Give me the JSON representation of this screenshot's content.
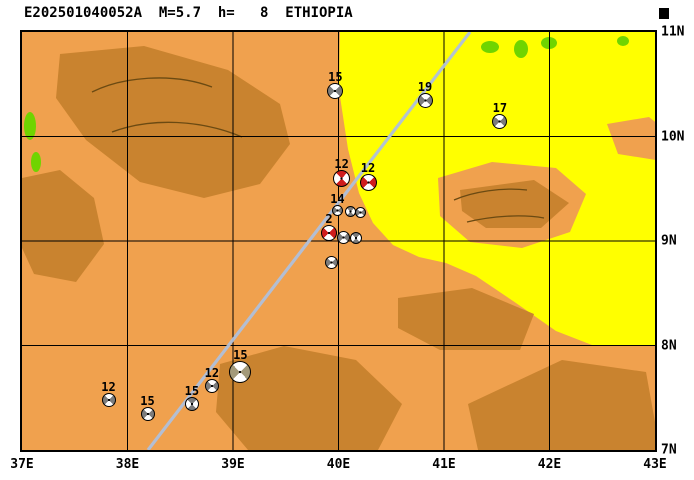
{
  "title": "E202501040052A  M=5.7  h=   8  ETHIOPIA",
  "map": {
    "x_ticks": [
      "37E",
      "38E",
      "39E",
      "40E",
      "41E",
      "42E",
      "43E"
    ],
    "y_ticks": [
      "11N",
      "10N",
      "9N",
      "8N",
      "7N"
    ],
    "lon_range": [
      37,
      43
    ],
    "lat_range": [
      7,
      11
    ]
  },
  "colors": {
    "base": "#f0a14e",
    "dark": "#c9832f",
    "lowland": "#ffff00",
    "green": "#6fd400",
    "line": "#afc0da",
    "gray_quad": "#7c7c7c",
    "red_quad": "#cf1d1d",
    "big_quad": "#a39a7a"
  },
  "events": [
    {
      "depth_label": "15",
      "lon": 39.97,
      "lat": 10.44,
      "kind": "gray",
      "size": 16,
      "rot": 45
    },
    {
      "depth_label": "19",
      "lon": 40.82,
      "lat": 10.34,
      "kind": "gray",
      "size": 15,
      "rot": 45
    },
    {
      "depth_label": "17",
      "lon": 41.53,
      "lat": 10.14,
      "kind": "gray",
      "size": 15,
      "rot": 45
    },
    {
      "depth_label": "12",
      "lon": 40.03,
      "lat": 9.6,
      "kind": "red",
      "size": 17,
      "rot": -45
    },
    {
      "depth_label": "12",
      "lon": 40.28,
      "lat": 9.56,
      "kind": "red",
      "size": 17,
      "rot": 45
    },
    {
      "depth_label": "14",
      "lon": 39.99,
      "lat": 9.29,
      "kind": "gray",
      "size": 11,
      "rot": 45
    },
    {
      "depth_label": "",
      "lon": 40.11,
      "lat": 9.28,
      "kind": "gray",
      "size": 11,
      "rot": -45
    },
    {
      "depth_label": "",
      "lon": 40.21,
      "lat": 9.27,
      "kind": "gray",
      "size": 11,
      "rot": 45
    },
    {
      "depth_label": "2",
      "lon": 39.91,
      "lat": 9.08,
      "kind": "red",
      "size": 16,
      "rot": 45
    },
    {
      "depth_label": "",
      "lon": 40.05,
      "lat": 9.03,
      "kind": "gray",
      "size": 13,
      "rot": 45
    },
    {
      "depth_label": "",
      "lon": 40.17,
      "lat": 9.03,
      "kind": "gray",
      "size": 12,
      "rot": -45
    },
    {
      "depth_label": "",
      "lon": 39.93,
      "lat": 8.79,
      "kind": "gray",
      "size": 13,
      "rot": 45
    },
    {
      "depth_label": "15",
      "lon": 39.07,
      "lat": 7.75,
      "kind": "big",
      "size": 22,
      "rot": 45
    },
    {
      "depth_label": "12",
      "lon": 38.8,
      "lat": 7.61,
      "kind": "gray",
      "size": 14,
      "rot": 45
    },
    {
      "depth_label": "15",
      "lon": 38.61,
      "lat": 7.44,
      "kind": "gray",
      "size": 14,
      "rot": -45
    },
    {
      "depth_label": "15",
      "lon": 38.19,
      "lat": 7.34,
      "kind": "gray",
      "size": 14,
      "rot": 45
    },
    {
      "depth_label": "12",
      "lon": 37.82,
      "lat": 7.48,
      "kind": "gray",
      "size": 14,
      "rot": 45
    }
  ]
}
